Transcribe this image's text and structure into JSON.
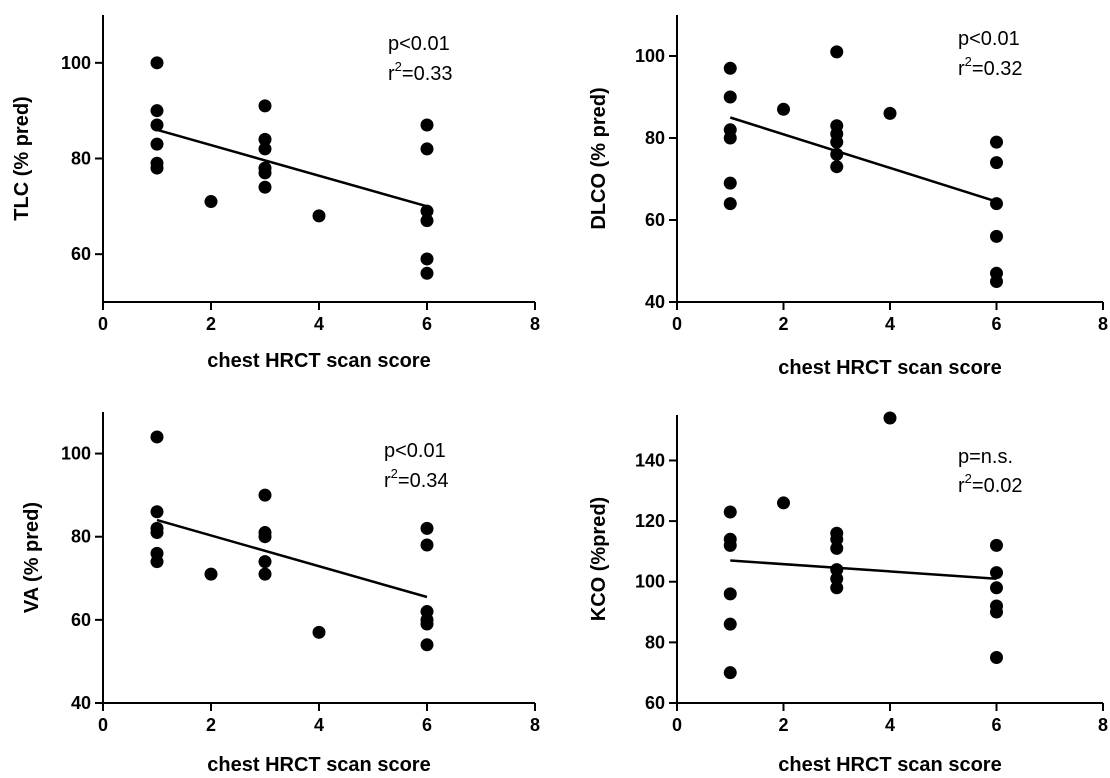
{
  "chart_data": [
    {
      "type": "scatter",
      "xlabel": "chest HRCT scan score",
      "ylabel": "TLC (% pred)",
      "xlim": [
        0,
        8
      ],
      "ylim": [
        50,
        110
      ],
      "xticks": [
        0,
        2,
        4,
        6,
        8
      ],
      "yticks": [
        60,
        80,
        100
      ],
      "annotations": {
        "p": "p<0.01",
        "r_prefix": "r",
        "r_exp": "2",
        "r_value": "=0.33"
      },
      "points": [
        [
          1,
          100
        ],
        [
          1,
          90
        ],
        [
          1,
          87
        ],
        [
          1,
          83
        ],
        [
          1,
          79
        ],
        [
          1,
          78
        ],
        [
          2,
          71
        ],
        [
          3,
          91
        ],
        [
          3,
          84
        ],
        [
          3,
          82
        ],
        [
          3,
          78
        ],
        [
          3,
          77
        ],
        [
          3,
          74
        ],
        [
          4,
          68
        ],
        [
          6,
          87
        ],
        [
          6,
          82
        ],
        [
          6,
          69
        ],
        [
          6,
          67
        ],
        [
          6,
          59
        ],
        [
          6,
          56
        ]
      ],
      "regression": {
        "x": [
          1,
          6
        ],
        "y": [
          86,
          70
        ]
      },
      "grid": false
    },
    {
      "type": "scatter",
      "xlabel": "chest HRCT scan score",
      "ylabel": "DLCO (% pred)",
      "xlim": [
        0,
        8
      ],
      "ylim": [
        40,
        110
      ],
      "xticks": [
        0,
        2,
        4,
        6,
        8
      ],
      "yticks": [
        40,
        60,
        80,
        100
      ],
      "annotations": {
        "p": "p<0.01",
        "r_prefix": "r",
        "r_exp": "2",
        "r_value": "=0.32"
      },
      "points": [
        [
          1,
          97
        ],
        [
          1,
          90
        ],
        [
          1,
          82
        ],
        [
          1,
          80
        ],
        [
          1,
          69
        ],
        [
          1,
          64
        ],
        [
          2,
          87
        ],
        [
          3,
          101
        ],
        [
          3,
          83
        ],
        [
          3,
          81
        ],
        [
          3,
          79
        ],
        [
          3,
          76
        ],
        [
          3,
          73
        ],
        [
          4,
          86
        ],
        [
          6,
          79
        ],
        [
          6,
          74
        ],
        [
          6,
          64
        ],
        [
          6,
          56
        ],
        [
          6,
          47
        ],
        [
          6,
          45
        ]
      ],
      "regression": {
        "x": [
          1,
          6
        ],
        "y": [
          85,
          64.5
        ]
      },
      "grid": false
    },
    {
      "type": "scatter",
      "xlabel": "chest HRCT scan score",
      "ylabel": "VA (% pred)",
      "xlim": [
        0,
        8
      ],
      "ylim": [
        40,
        110
      ],
      "xticks": [
        0,
        2,
        4,
        6,
        8
      ],
      "yticks": [
        40,
        60,
        80,
        100
      ],
      "annotations": {
        "p": "p<0.01",
        "r_prefix": "r",
        "r_exp": "2",
        "r_value": "=0.34"
      },
      "points": [
        [
          1,
          104
        ],
        [
          1,
          86
        ],
        [
          1,
          82
        ],
        [
          1,
          81
        ],
        [
          1,
          76
        ],
        [
          1,
          74
        ],
        [
          2,
          71
        ],
        [
          3,
          90
        ],
        [
          3,
          81
        ],
        [
          3,
          80
        ],
        [
          3,
          74
        ],
        [
          3,
          71
        ],
        [
          4,
          57
        ],
        [
          6,
          82
        ],
        [
          6,
          78
        ],
        [
          6,
          62
        ],
        [
          6,
          60
        ],
        [
          6,
          59
        ],
        [
          6,
          54
        ]
      ],
      "regression": {
        "x": [
          1,
          6
        ],
        "y": [
          84,
          65.5
        ]
      },
      "grid": false
    },
    {
      "type": "scatter",
      "xlabel": "chest HRCT scan score",
      "ylabel": "KCO (%pred)",
      "xlim": [
        0,
        8
      ],
      "ylim": [
        60,
        155
      ],
      "xticks": [
        0,
        2,
        4,
        6,
        8
      ],
      "yticks": [
        60,
        80,
        100,
        120,
        140
      ],
      "annotations": {
        "p": "p=n.s.",
        "r_prefix": "r",
        "r_exp": "2",
        "r_value": "=0.02"
      },
      "points": [
        [
          1,
          123
        ],
        [
          1,
          114
        ],
        [
          1,
          112
        ],
        [
          1,
          96
        ],
        [
          1,
          86
        ],
        [
          1,
          70
        ],
        [
          2,
          126
        ],
        [
          3,
          116
        ],
        [
          3,
          114
        ],
        [
          3,
          111
        ],
        [
          3,
          104
        ],
        [
          3,
          101
        ],
        [
          3,
          98
        ],
        [
          4,
          154
        ],
        [
          6,
          112
        ],
        [
          6,
          103
        ],
        [
          6,
          98
        ],
        [
          6,
          92
        ],
        [
          6,
          90
        ],
        [
          6,
          75
        ]
      ],
      "regression": {
        "x": [
          1,
          6
        ],
        "y": [
          107,
          101
        ]
      },
      "grid": false
    }
  ],
  "style": {
    "marker_color": "#000000",
    "line_color": "#000000",
    "background": "#ffffff"
  }
}
